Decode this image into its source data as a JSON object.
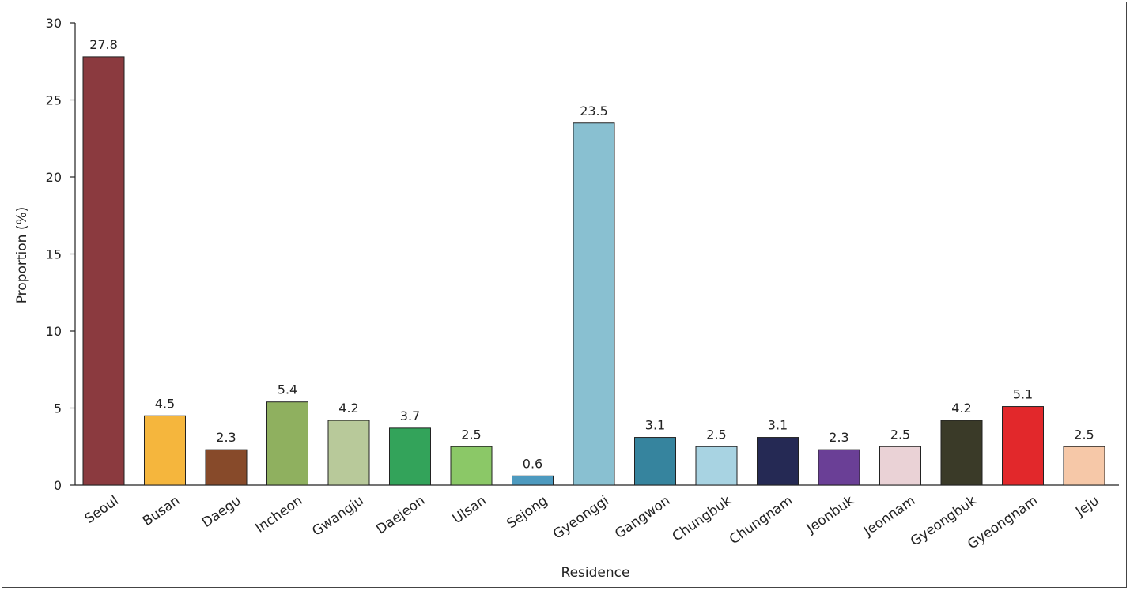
{
  "chart_data": {
    "type": "bar",
    "title": "",
    "xlabel": "Residence",
    "ylabel": "Proportion (%)",
    "ylim": [
      0,
      30
    ],
    "yticks": [
      0,
      5,
      10,
      15,
      20,
      25,
      30
    ],
    "grid": false,
    "categories": [
      "Seoul",
      "Busan",
      "Daegu",
      "Incheon",
      "Gwangju",
      "Daejeon",
      "Ulsan",
      "Sejong",
      "Gyeonggi",
      "Gangwon",
      "Chungbuk",
      "Chungnam",
      "Jeonbuk",
      "Jeonnam",
      "Gyeongbuk",
      "Gyeongnam",
      "Jeju"
    ],
    "values": [
      27.8,
      4.5,
      2.3,
      5.4,
      4.2,
      3.7,
      2.5,
      0.6,
      23.5,
      3.1,
      2.5,
      3.1,
      2.3,
      2.5,
      4.2,
      5.1,
      2.5
    ],
    "value_labels": [
      "27.8",
      "4.5",
      "2.3",
      "5.4",
      "4.2",
      "3.7",
      "2.5",
      "0.6",
      "23.5",
      "3.1",
      "2.5",
      "3.1",
      "2.3",
      "2.5",
      "4.2",
      "5.1",
      "2.5"
    ],
    "colors": [
      "#8b3a3f",
      "#f5b63d",
      "#874a2a",
      "#8fb05f",
      "#b8c99a",
      "#33a35a",
      "#8bc867",
      "#4d9abf",
      "#89c0d1",
      "#36849e",
      "#a8d3e2",
      "#252954",
      "#6a3f96",
      "#ead2d6",
      "#3a3a28",
      "#e2282b",
      "#f6c8a8"
    ]
  }
}
